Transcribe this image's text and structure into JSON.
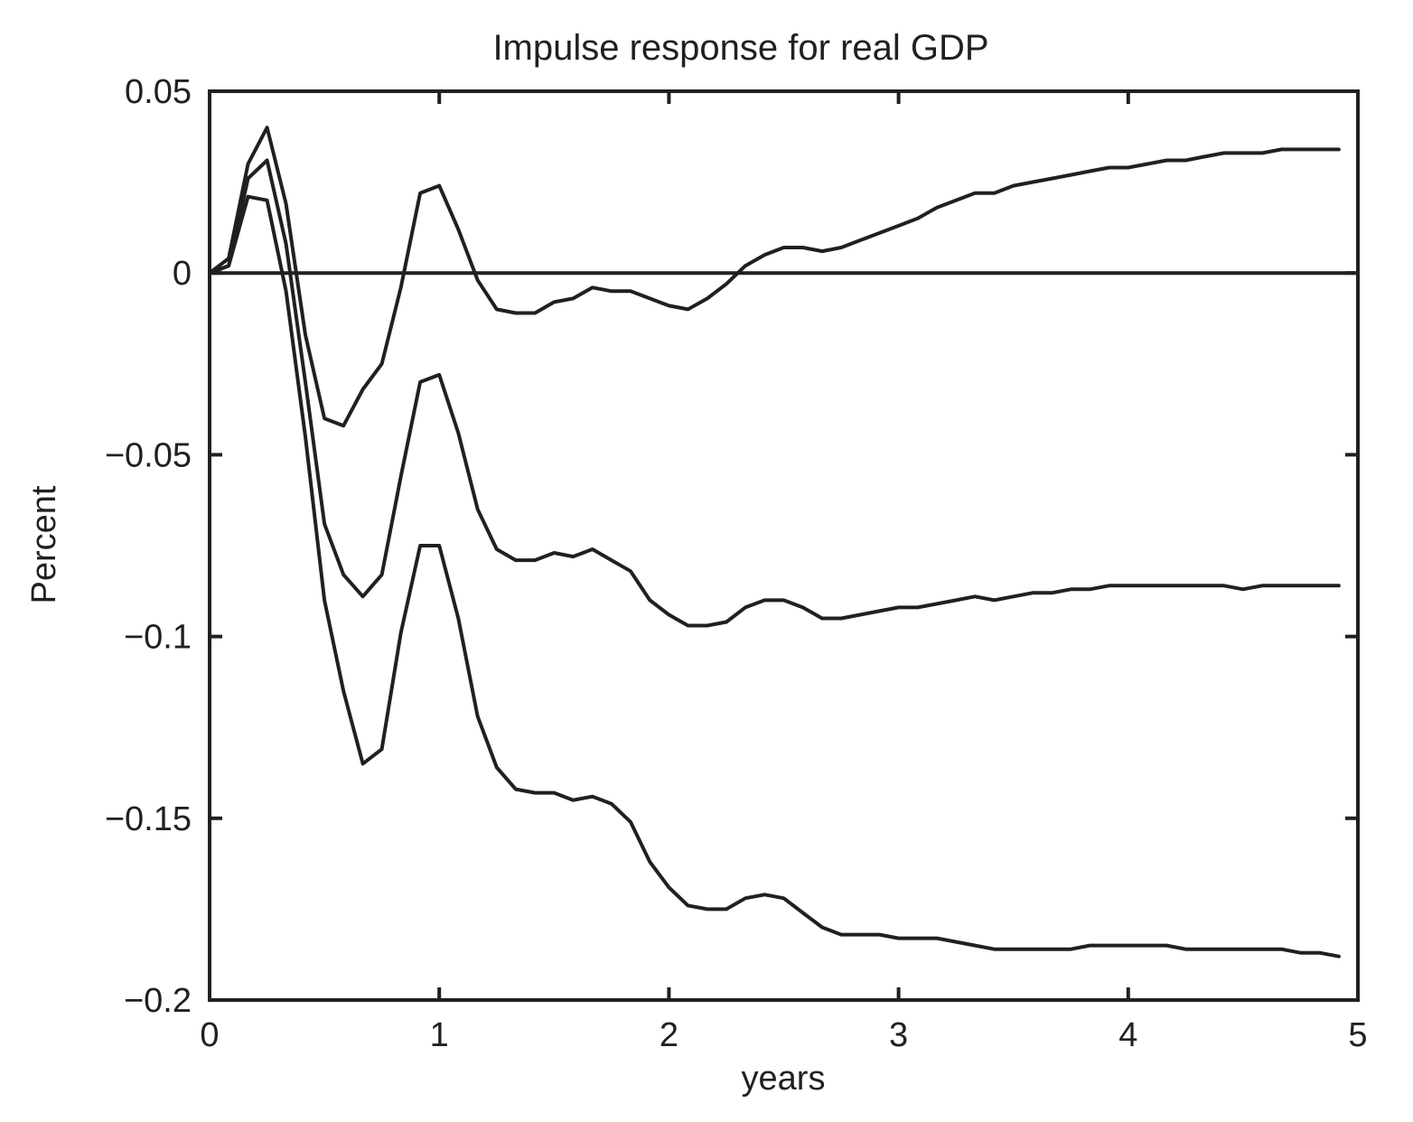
{
  "chart_data": {
    "type": "line",
    "title": "Impulse response for real GDP",
    "xlabel": "years",
    "ylabel": "Percent",
    "xlim": [
      0,
      5
    ],
    "ylim": [
      -0.2,
      0.05
    ],
    "xticks": [
      0,
      1,
      2,
      3,
      4,
      5
    ],
    "xtick_labels": [
      "0",
      "1",
      "2",
      "3",
      "4",
      "5"
    ],
    "yticks": [
      0.05,
      0,
      -0.05,
      -0.1,
      -0.15,
      -0.2
    ],
    "ytick_labels": [
      "0.05",
      "0",
      "−0.05",
      "−0.1",
      "−0.15",
      "−0.2"
    ],
    "reference_line": {
      "y": 0
    },
    "grid": false,
    "legend": false,
    "line_color": "#231f20",
    "x": [
      0,
      0.083,
      0.167,
      0.25,
      0.333,
      0.417,
      0.5,
      0.583,
      0.667,
      0.75,
      0.833,
      0.917,
      1.0,
      1.083,
      1.167,
      1.25,
      1.333,
      1.417,
      1.5,
      1.583,
      1.667,
      1.75,
      1.833,
      1.917,
      2.0,
      2.083,
      2.167,
      2.25,
      2.333,
      2.417,
      2.5,
      2.583,
      2.667,
      2.75,
      2.833,
      2.917,
      3.0,
      3.083,
      3.167,
      3.25,
      3.333,
      3.417,
      3.5,
      3.583,
      3.667,
      3.75,
      3.833,
      3.917,
      4.0,
      4.083,
      4.167,
      4.25,
      4.333,
      4.417,
      4.5,
      4.583,
      4.667,
      4.75,
      4.833,
      4.917
    ],
    "series": [
      {
        "values": [
          0,
          0.004,
          0.03,
          0.04,
          0.019,
          -0.017,
          -0.04,
          -0.042,
          -0.032,
          -0.025,
          -0.004,
          0.022,
          0.024,
          0.012,
          -0.002,
          -0.01,
          -0.011,
          -0.011,
          -0.008,
          -0.007,
          -0.004,
          -0.005,
          -0.005,
          -0.007,
          -0.009,
          -0.01,
          -0.007,
          -0.003,
          0.002,
          0.005,
          0.007,
          0.007,
          0.006,
          0.007,
          0.009,
          0.011,
          0.013,
          0.015,
          0.018,
          0.02,
          0.022,
          0.022,
          0.024,
          0.025,
          0.026,
          0.027,
          0.028,
          0.029,
          0.029,
          0.03,
          0.031,
          0.031,
          0.032,
          0.033,
          0.033,
          0.033,
          0.034,
          0.034,
          0.034,
          0.034
        ]
      },
      {
        "values": [
          0,
          0.002,
          0.026,
          0.031,
          0.008,
          -0.03,
          -0.069,
          -0.083,
          -0.089,
          -0.083,
          -0.056,
          -0.03,
          -0.028,
          -0.044,
          -0.065,
          -0.076,
          -0.079,
          -0.079,
          -0.077,
          -0.078,
          -0.076,
          -0.079,
          -0.082,
          -0.09,
          -0.094,
          -0.097,
          -0.097,
          -0.096,
          -0.092,
          -0.09,
          -0.09,
          -0.092,
          -0.095,
          -0.095,
          -0.094,
          -0.093,
          -0.092,
          -0.092,
          -0.091,
          -0.09,
          -0.089,
          -0.09,
          -0.089,
          -0.088,
          -0.088,
          -0.087,
          -0.087,
          -0.086,
          -0.086,
          -0.086,
          -0.086,
          -0.086,
          -0.086,
          -0.086,
          -0.087,
          -0.086,
          -0.086,
          -0.086,
          -0.086,
          -0.086
        ]
      },
      {
        "values": [
          0,
          0.002,
          0.021,
          0.02,
          -0.005,
          -0.045,
          -0.09,
          -0.115,
          -0.135,
          -0.131,
          -0.099,
          -0.075,
          -0.075,
          -0.095,
          -0.122,
          -0.136,
          -0.142,
          -0.143,
          -0.143,
          -0.145,
          -0.144,
          -0.146,
          -0.151,
          -0.162,
          -0.169,
          -0.174,
          -0.175,
          -0.175,
          -0.172,
          -0.171,
          -0.172,
          -0.176,
          -0.18,
          -0.182,
          -0.182,
          -0.182,
          -0.183,
          -0.183,
          -0.183,
          -0.184,
          -0.185,
          -0.186,
          -0.186,
          -0.186,
          -0.186,
          -0.186,
          -0.185,
          -0.185,
          -0.185,
          -0.185,
          -0.185,
          -0.186,
          -0.186,
          -0.186,
          -0.186,
          -0.186,
          -0.186,
          -0.187,
          -0.187,
          -0.188
        ]
      }
    ]
  }
}
